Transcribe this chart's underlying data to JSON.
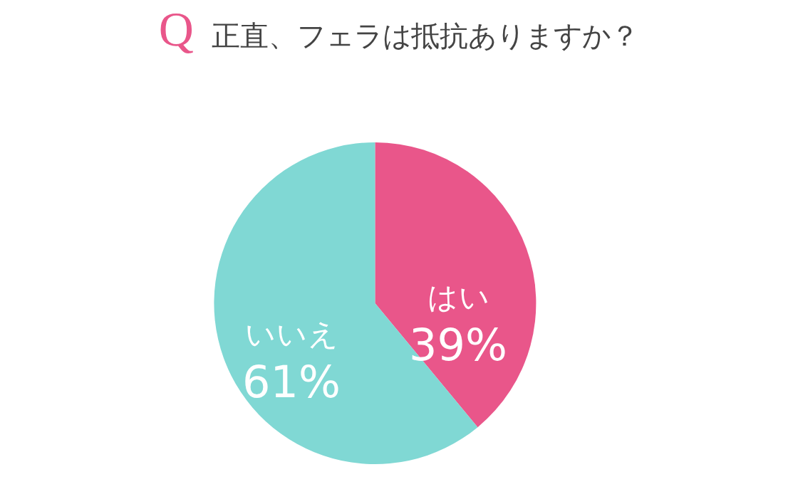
{
  "chart_data": {
    "type": "pie",
    "title": "Q 正直、フェラは抵抗ありますか？",
    "categories": [
      "はい",
      "いいえ"
    ],
    "values": [
      39,
      61
    ],
    "value_labels": [
      "39%",
      "61%"
    ],
    "colors": [
      "#e9568a",
      "#80d8d4"
    ],
    "legend": false
  }
}
